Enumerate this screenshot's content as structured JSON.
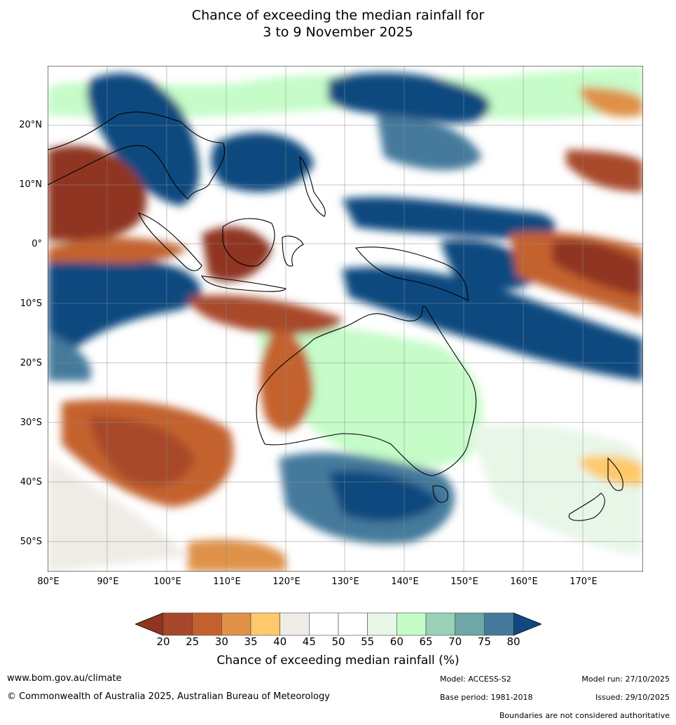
{
  "title_line1": "Chance of exceeding the median rainfall for",
  "title_line2": "3 to 9 November 2025",
  "lat_labels": [
    "20°N",
    "10°N",
    "0°",
    "10°S",
    "20°S",
    "30°S",
    "40°S",
    "50°S"
  ],
  "lon_labels": [
    "80°E",
    "90°E",
    "100°E",
    "110°E",
    "120°E",
    "130°E",
    "140°E",
    "150°E",
    "160°E",
    "170°E"
  ],
  "colorbar": {
    "ticks": [
      "20",
      "25",
      "30",
      "35",
      "40",
      "45",
      "50",
      "55",
      "60",
      "65",
      "70",
      "75",
      "80"
    ],
    "colors": [
      "#8f3420",
      "#a8482a",
      "#c4622f",
      "#df9148",
      "#fdc96b",
      "#efece6",
      "#ffffff",
      "#ffffff",
      "#e8f6e8",
      "#c5fcc8",
      "#99d0b6",
      "#6fa6a6",
      "#447a9c"
    ],
    "under_color": "#8f3420",
    "over_color": "#0e4a7f",
    "label": "Chance of exceeding median rainfall (%)"
  },
  "footer": {
    "website": "www.bom.gov.au/climate",
    "copyright": "© Commonwealth of Australia 2025, Australian Bureau of Meteorology",
    "model": "Model: ACCESS-S2",
    "base_period": "Base period: 1981-2018",
    "model_run": "Model run: 27/10/2025",
    "issued": "Issued: 29/10/2025",
    "disclaimer": "Boundaries are not considered authoritative"
  }
}
